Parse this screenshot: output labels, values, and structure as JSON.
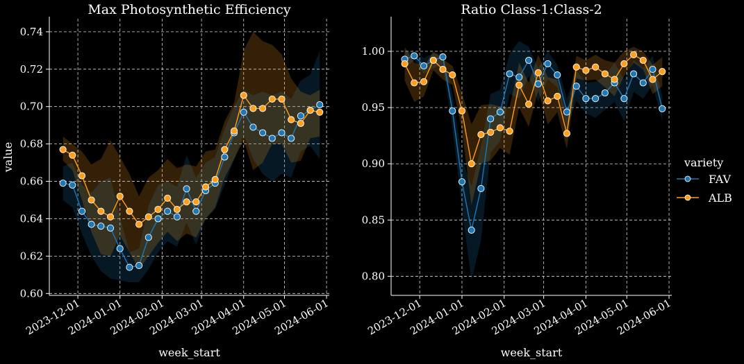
{
  "figure": {
    "legend": {
      "title": "variety",
      "entries": [
        {
          "name": "FAV",
          "color": "#1f77b4"
        },
        {
          "name": "ALB",
          "color": "#ff9f1c"
        }
      ]
    }
  },
  "chart_data": [
    {
      "type": "line",
      "title": "Max Photosynthetic Efficiency",
      "xlabel": "week_start",
      "ylabel": "value",
      "x_ticks": [
        "2023-12-01",
        "2024-01-01",
        "2024-02-01",
        "2024-03-01",
        "2024-04-01",
        "2024-05-01",
        "2024-06-01"
      ],
      "y_ticks": [
        "0.60",
        "0.62",
        "0.64",
        "0.66",
        "0.68",
        "0.70",
        "0.72",
        "0.74"
      ],
      "xlim": [
        "2023-11-10",
        "2024-06-03"
      ],
      "ylim": [
        0.599,
        0.747
      ],
      "grid": true,
      "x": [
        "2023-11-20",
        "2023-11-27",
        "2023-12-04",
        "2023-12-11",
        "2023-12-18",
        "2023-12-25",
        "2024-01-01",
        "2024-01-08",
        "2024-01-15",
        "2024-01-22",
        "2024-01-29",
        "2024-02-05",
        "2024-02-12",
        "2024-02-19",
        "2024-02-26",
        "2024-03-04",
        "2024-03-11",
        "2024-03-18",
        "2024-03-25",
        "2024-04-01",
        "2024-04-08",
        "2024-04-15",
        "2024-04-22",
        "2024-04-29",
        "2024-05-06",
        "2024-05-13",
        "2024-05-20",
        "2024-05-27"
      ],
      "series": [
        {
          "name": "FAV",
          "color": "#1f77b4",
          "values": [
            0.659,
            0.658,
            0.644,
            0.637,
            0.636,
            0.635,
            0.624,
            0.614,
            0.615,
            0.63,
            0.64,
            0.644,
            0.641,
            0.656,
            0.644,
            0.655,
            0.659,
            0.673,
            0.686,
            0.697,
            0.689,
            0.686,
            0.683,
            0.686,
            0.683,
            0.695,
            0.698,
            0.701
          ],
          "lower": [
            0.65,
            0.646,
            0.632,
            0.62,
            0.612,
            0.608,
            0.607,
            0.606,
            0.606,
            0.613,
            0.622,
            0.628,
            0.625,
            0.638,
            0.626,
            0.64,
            0.645,
            0.658,
            0.672,
            0.685,
            0.672,
            0.664,
            0.66,
            0.664,
            0.662,
            0.676,
            0.679,
            0.672
          ],
          "upper": [
            0.668,
            0.67,
            0.658,
            0.654,
            0.66,
            0.662,
            0.641,
            0.622,
            0.624,
            0.647,
            0.658,
            0.66,
            0.657,
            0.674,
            0.662,
            0.67,
            0.673,
            0.688,
            0.7,
            0.709,
            0.706,
            0.708,
            0.706,
            0.708,
            0.704,
            0.714,
            0.717,
            0.73
          ]
        },
        {
          "name": "ALB",
          "color": "#ff9f1c",
          "values": [
            0.677,
            0.674,
            0.663,
            0.65,
            0.644,
            0.641,
            0.652,
            0.644,
            0.637,
            0.641,
            0.645,
            0.651,
            0.645,
            0.649,
            0.649,
            0.657,
            0.661,
            0.677,
            0.687,
            0.706,
            0.699,
            0.699,
            0.704,
            0.704,
            0.693,
            0.691,
            0.698,
            0.697
          ],
          "lower": [
            0.671,
            0.666,
            0.65,
            0.633,
            0.621,
            0.62,
            0.631,
            0.622,
            0.613,
            0.62,
            0.627,
            0.633,
            0.628,
            0.632,
            0.63,
            0.64,
            0.646,
            0.662,
            0.672,
            0.682,
            0.666,
            0.67,
            0.68,
            0.68,
            0.67,
            0.671,
            0.683,
            0.684
          ],
          "upper": [
            0.684,
            0.68,
            0.676,
            0.669,
            0.672,
            0.682,
            0.673,
            0.664,
            0.652,
            0.662,
            0.666,
            0.672,
            0.667,
            0.669,
            0.668,
            0.676,
            0.677,
            0.692,
            0.702,
            0.73,
            0.74,
            0.735,
            0.733,
            0.728,
            0.715,
            0.708,
            0.706,
            0.709
          ]
        }
      ]
    },
    {
      "type": "line",
      "title": "Ratio Class-1:Class-2",
      "xlabel": "week_start",
      "ylabel": "",
      "x_ticks": [
        "2023-12-01",
        "2024-01-01",
        "2024-02-01",
        "2024-03-01",
        "2024-04-01",
        "2024-05-01",
        "2024-06-01"
      ],
      "y_ticks": [
        "0.80",
        "0.85",
        "0.90",
        "0.95",
        "1.00"
      ],
      "xlim": [
        "2023-11-10",
        "2024-06-03"
      ],
      "ylim": [
        0.783,
        1.029
      ],
      "grid": true,
      "x": [
        "2023-11-20",
        "2023-11-27",
        "2023-12-04",
        "2023-12-11",
        "2023-12-18",
        "2023-12-25",
        "2024-01-01",
        "2024-01-08",
        "2024-01-15",
        "2024-01-22",
        "2024-01-29",
        "2024-02-05",
        "2024-02-12",
        "2024-02-19",
        "2024-02-26",
        "2024-03-04",
        "2024-03-11",
        "2024-03-18",
        "2024-03-25",
        "2024-04-01",
        "2024-04-08",
        "2024-04-15",
        "2024-04-22",
        "2024-04-29",
        "2024-05-06",
        "2024-05-13",
        "2024-05-20",
        "2024-05-27"
      ],
      "series": [
        {
          "name": "FAV",
          "color": "#1f77b4",
          "values": [
            0.993,
            0.996,
            0.987,
            0.992,
            0.995,
            0.947,
            0.884,
            0.841,
            0.878,
            0.94,
            0.946,
            0.98,
            0.977,
            0.992,
            0.971,
            0.989,
            0.979,
            0.946,
            0.969,
            0.958,
            0.958,
            0.963,
            0.972,
            0.958,
            0.98,
            0.972,
            0.984,
            0.949
          ],
          "lower": [
            0.985,
            0.992,
            0.98,
            0.985,
            0.988,
            0.932,
            0.86,
            0.796,
            0.832,
            0.91,
            0.92,
            0.962,
            0.958,
            0.978,
            0.955,
            0.975,
            0.968,
            0.932,
            0.956,
            0.945,
            0.941,
            0.948,
            0.955,
            0.938,
            0.964,
            0.958,
            0.97,
            0.938
          ],
          "upper": [
            1.001,
            0.999,
            0.994,
            0.998,
            0.998,
            0.962,
            0.905,
            0.88,
            0.915,
            0.962,
            0.966,
            0.998,
            1.009,
            1.004,
            0.985,
            1.0,
            0.988,
            0.958,
            0.983,
            0.972,
            0.973,
            0.978,
            0.99,
            0.975,
            0.992,
            0.985,
            0.996,
            0.96
          ]
        },
        {
          "name": "ALB",
          "color": "#ff9f1c",
          "values": [
            0.989,
            0.972,
            0.973,
            0.992,
            0.984,
            0.979,
            0.947,
            0.9,
            0.926,
            0.928,
            0.932,
            0.929,
            0.97,
            0.953,
            0.981,
            0.956,
            0.96,
            0.927,
            0.986,
            0.983,
            0.986,
            0.98,
            0.975,
            0.989,
            0.997,
            0.992,
            0.975,
            0.982
          ],
          "lower": [
            0.974,
            0.955,
            0.96,
            0.983,
            0.975,
            0.97,
            0.93,
            0.863,
            0.9,
            0.903,
            0.914,
            0.908,
            0.95,
            0.933,
            0.965,
            0.935,
            0.946,
            0.913,
            0.976,
            0.974,
            0.975,
            0.968,
            0.96,
            0.978,
            0.99,
            0.984,
            0.962,
            0.969
          ],
          "upper": [
            1.004,
            0.99,
            0.986,
            1.0,
            0.993,
            0.987,
            0.963,
            0.935,
            0.952,
            0.953,
            0.951,
            0.95,
            0.99,
            0.972,
            0.997,
            0.977,
            0.975,
            0.941,
            0.996,
            0.992,
            0.997,
            0.992,
            0.99,
            1.0,
            1.004,
            1.0,
            0.988,
            0.995
          ]
        }
      ]
    }
  ]
}
